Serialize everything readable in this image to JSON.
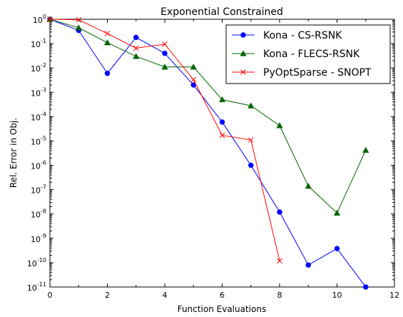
{
  "chart_data": {
    "type": "line",
    "title": "Exponential Constrained",
    "xlabel": "Function Evaluations",
    "ylabel": "Rel. Error in Obj.",
    "xlim": [
      0,
      12
    ],
    "ylim": [
      1e-11,
      1
    ],
    "yscale": "log",
    "x_ticks": [
      "0",
      "2",
      "4",
      "6",
      "8",
      "10",
      "12"
    ],
    "y_ticks": [
      {
        "base": "10",
        "exp": "0"
      },
      {
        "base": "10",
        "exp": "-1"
      },
      {
        "base": "10",
        "exp": "-2"
      },
      {
        "base": "10",
        "exp": "-3"
      },
      {
        "base": "10",
        "exp": "-4"
      },
      {
        "base": "10",
        "exp": "-5"
      },
      {
        "base": "10",
        "exp": "-6"
      },
      {
        "base": "10",
        "exp": "-7"
      },
      {
        "base": "10",
        "exp": "-8"
      },
      {
        "base": "10",
        "exp": "-9"
      },
      {
        "base": "10",
        "exp": "-10"
      },
      {
        "base": "10",
        "exp": "-11"
      }
    ],
    "grid": false,
    "legend_position": "upper-right",
    "series": [
      {
        "name": "Kona - CS-RSNK",
        "color": "#0000ff",
        "marker": "circle",
        "x": [
          0,
          1,
          2,
          3,
          4,
          5,
          6,
          7,
          8,
          9,
          10,
          11
        ],
        "y": [
          1,
          0.35,
          0.006,
          0.18,
          0.04,
          0.002,
          6e-05,
          1e-06,
          1.2e-08,
          8e-11,
          3.8e-10,
          1e-11
        ]
      },
      {
        "name": "Kona - FLECS-RSNK",
        "color": "#006400",
        "marker": "triangle",
        "x": [
          0,
          1,
          2,
          3,
          4,
          5,
          6,
          7,
          8,
          9,
          10,
          11
        ],
        "y": [
          1,
          0.45,
          0.11,
          0.03,
          0.011,
          0.011,
          0.0005,
          0.00028,
          4.3e-05,
          1.4e-07,
          1.1e-08,
          4.2e-06
        ]
      },
      {
        "name": "PyOptSparse - SNOPT",
        "color": "#ff0000",
        "marker": "x",
        "x": [
          0,
          1,
          2,
          3,
          4,
          5,
          6,
          7,
          8
        ],
        "y": [
          1,
          0.95,
          0.26,
          0.065,
          0.095,
          0.0033,
          1.7e-05,
          1.1e-05,
          1.2e-10
        ]
      }
    ]
  }
}
